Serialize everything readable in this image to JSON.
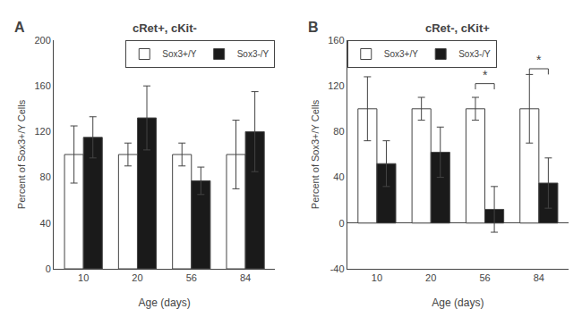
{
  "chart_data": [
    {
      "type": "bar",
      "label": "A",
      "title": "cRet+, cKit-",
      "xlabel": "Age (days)",
      "ylabel": "Percent of Sox3+/Y Cells",
      "categories": [
        "10",
        "20",
        "56",
        "84"
      ],
      "series": [
        {
          "name": "Sox3+/Y",
          "color": "#ffffff",
          "values": [
            100,
            100,
            100,
            100
          ],
          "errors": [
            25,
            10,
            10,
            30
          ]
        },
        {
          "name": "Sox3-/Y",
          "color": "#1a1a1a",
          "values": [
            115,
            132,
            77,
            120
          ],
          "errors": [
            18,
            28,
            12,
            35
          ]
        }
      ],
      "ylim": [
        0,
        200
      ],
      "yticks": [
        0,
        40,
        80,
        120,
        160,
        200
      ],
      "grid": false,
      "legend": "upper right"
    },
    {
      "type": "bar",
      "label": "B",
      "title": "cRet-, cKit+",
      "xlabel": "Age (days)",
      "ylabel": "Percent of Sox3+/Y Cells",
      "categories": [
        "10",
        "20",
        "56",
        "84"
      ],
      "series": [
        {
          "name": "Sox3+/Y",
          "color": "#ffffff",
          "values": [
            100,
            100,
            100,
            100
          ],
          "errors": [
            28,
            10,
            10,
            30
          ]
        },
        {
          "name": "Sox3-/Y",
          "color": "#1a1a1a",
          "values": [
            52,
            62,
            12,
            35
          ],
          "errors": [
            20,
            22,
            20,
            22
          ]
        }
      ],
      "ylim": [
        -40,
        160
      ],
      "yticks": [
        -40,
        0,
        40,
        80,
        120,
        160
      ],
      "significance": [
        {
          "category": "56",
          "y": 122,
          "cap": 5,
          "label": "*"
        },
        {
          "category": "84",
          "y": 135,
          "cap": 5,
          "label": "*"
        }
      ],
      "grid": false,
      "legend": "upper left"
    }
  ]
}
